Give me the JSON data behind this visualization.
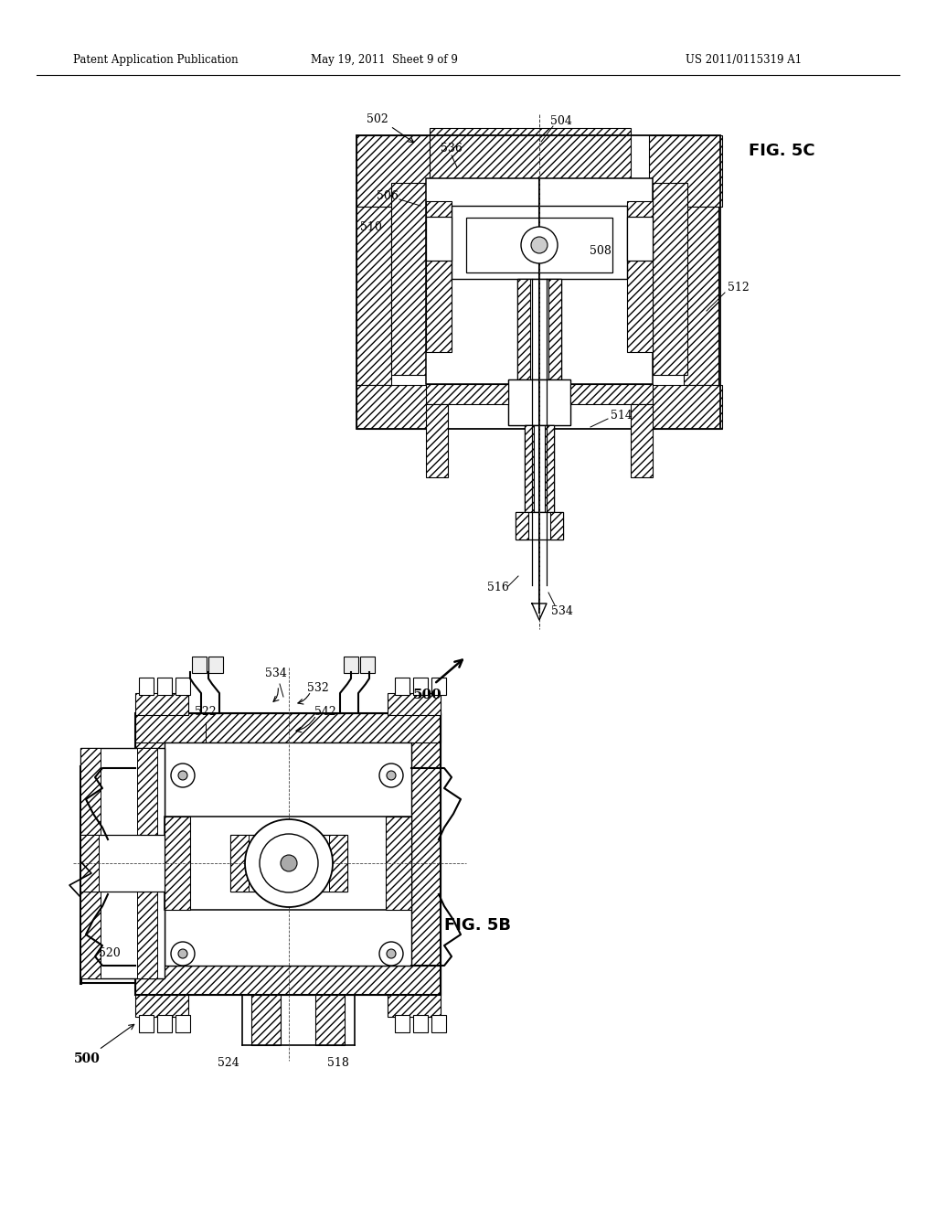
{
  "bg_color": "#ffffff",
  "header_left": "Patent Application Publication",
  "header_center": "May 19, 2011  Sheet 9 of 9",
  "header_right": "US 2011/0115319 A1",
  "fig5c_label": "FIG. 5C",
  "fig5b_label": "FIG. 5B"
}
